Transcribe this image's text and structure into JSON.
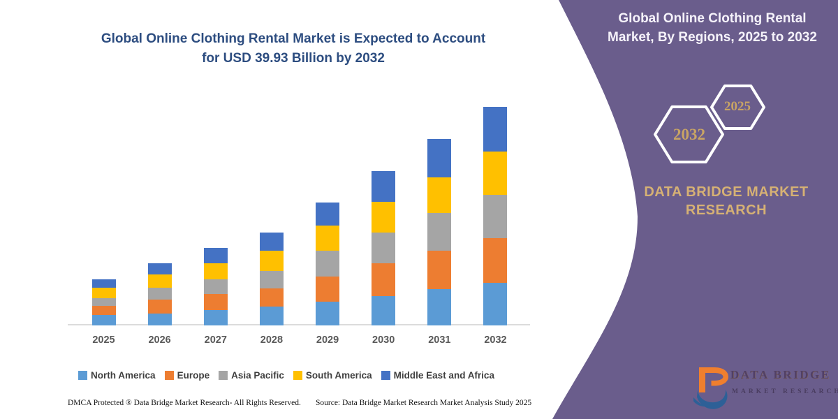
{
  "main_title": {
    "line1": "Global Online Clothing Rental Market is Expected to Account",
    "line2": "for USD 39.93 Billion by 2032"
  },
  "panel": {
    "title_line1": "Global Online Clothing Rental",
    "title_line2": "Market, By Regions, 2025 to 2032",
    "hexagons": [
      {
        "label": "2032"
      },
      {
        "label": "2025"
      }
    ],
    "brand": {
      "line1": "DATA BRIDGE MARKET",
      "line2": "RESEARCH"
    },
    "logo": {
      "line1": "DATA BRIDGE",
      "line2": "MARKET RESEARCH"
    },
    "colors": {
      "background": "#6a5d8c",
      "accent_gold": "#c9a464",
      "hex_outline": "#ffffff",
      "logo_orange": "#f07f2e",
      "logo_blue": "#2d6097"
    }
  },
  "footer": {
    "left": "DMCA Protected ® Data Bridge Market Research-  All Rights Reserved.",
    "source": "Source: Data Bridge Market Research  Market Analysis Study 2025"
  },
  "chart_data": {
    "type": "bar",
    "stacked": true,
    "title": "Global Online Clothing Rental Market is Expected to Account for USD 39.93 Billion by 2032",
    "unit": "USD Billion",
    "xlabel": "",
    "ylabel": "",
    "grid": false,
    "legend_position": "bottom",
    "ylim": [
      0,
      40
    ],
    "categories": [
      "2025",
      "2026",
      "2027",
      "2028",
      "2029",
      "2030",
      "2031",
      "2032"
    ],
    "series": [
      {
        "name": "North America",
        "color": "#5B9BD5",
        "values": [
          1.9,
          2.2,
          2.8,
          3.4,
          4.3,
          5.4,
          6.6,
          7.8
        ]
      },
      {
        "name": "Europe",
        "color": "#ED7D31",
        "values": [
          1.7,
          2.5,
          2.9,
          3.4,
          4.6,
          5.9,
          7.0,
          8.2
        ]
      },
      {
        "name": "Asia Pacific",
        "color": "#A5A5A5",
        "values": [
          1.4,
          2.2,
          2.7,
          3.2,
          4.7,
          5.7,
          7.0,
          7.8
        ]
      },
      {
        "name": "South America",
        "color": "#FFC000",
        "values": [
          1.9,
          2.4,
          2.9,
          3.6,
          4.6,
          5.6,
          6.5,
          8.0
        ]
      },
      {
        "name": "Middle East and Africa",
        "color": "#4472C4",
        "values": [
          1.5,
          2.1,
          2.9,
          3.4,
          4.2,
          5.6,
          6.9,
          8.1
        ]
      }
    ],
    "totals": [
      8.4,
      11.4,
      14.2,
      17.0,
      22.4,
      28.2,
      34.0,
      39.9
    ],
    "highlighted_total_label": "USD 39.93 Billion by 2032"
  }
}
